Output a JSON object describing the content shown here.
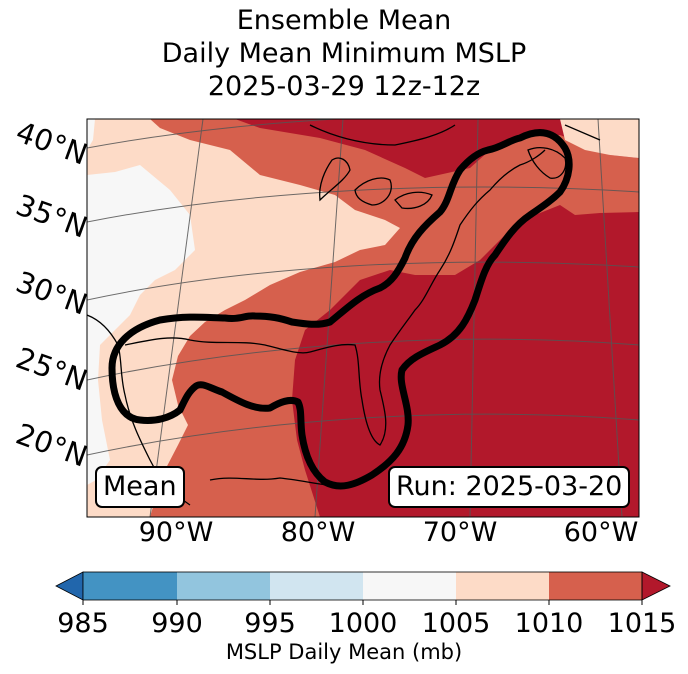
{
  "title": {
    "line1": "Ensemble Mean",
    "line2": "Daily Mean Minimum MSLP",
    "line3": "2025-03-29 12z-12z"
  },
  "map": {
    "lat_labels": [
      "40°N",
      "35°N",
      "30°N",
      "25°N",
      "20°N"
    ],
    "lon_labels": [
      "90°W",
      "80°W",
      "70°W",
      "60°W"
    ],
    "mean_box": "Mean",
    "run_box": "Run: 2025-03-20",
    "colors": {
      "c1000_1005": "#f7f7f7",
      "c1005_1010": "#fddbc7",
      "c1010_1015": "#d6604d",
      "c1015_plus": "#b2182b",
      "contour": "#000000",
      "coast": "#000000",
      "grid": "#555555"
    }
  },
  "colorbar": {
    "label": "MSLP Daily Mean (mb)",
    "ticks": [
      "985",
      "990",
      "995",
      "1000",
      "1005",
      "1010",
      "1015"
    ],
    "colors": [
      "#2166ac",
      "#4393c3",
      "#92c5de",
      "#d1e5f0",
      "#f7f7f7",
      "#fddbc7",
      "#d6604d",
      "#b2182b"
    ]
  }
}
